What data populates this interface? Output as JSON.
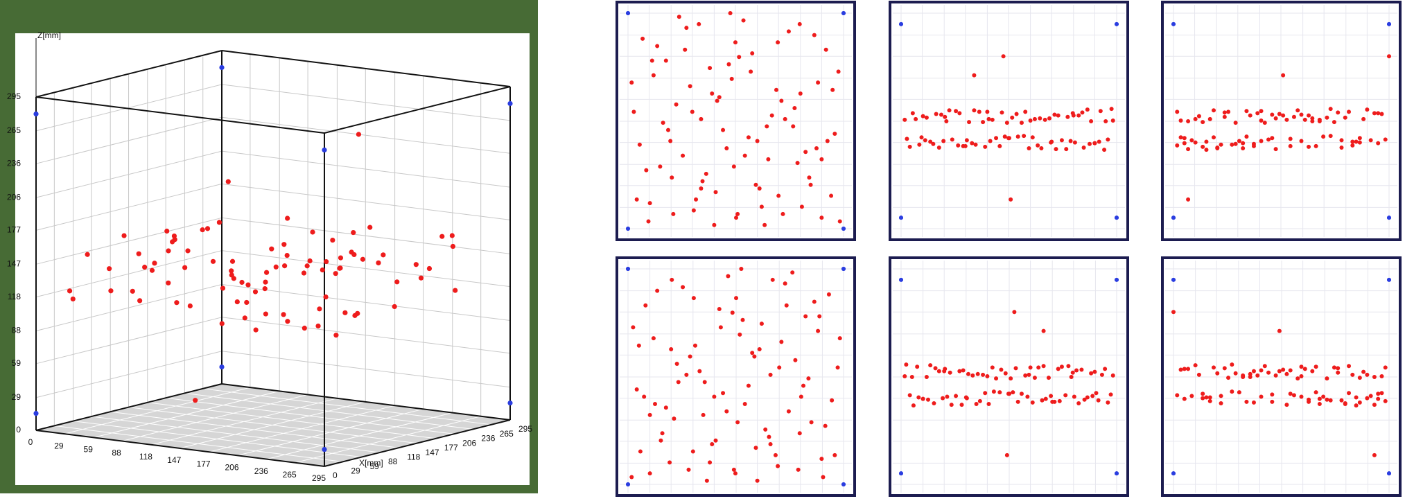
{
  "chart_data": {
    "type": "scatter",
    "z_label": "Z[mm]",
    "y_label": "X[mm]",
    "xlim": [
      0,
      295
    ],
    "ylim": [
      0,
      295
    ],
    "zlim": [
      0,
      295
    ],
    "xticks": [
      0,
      29,
      59,
      88,
      118,
      147,
      177,
      206,
      236,
      265,
      295
    ],
    "yticks": [
      0,
      29,
      59,
      88,
      118,
      147,
      177,
      206,
      236,
      265,
      295
    ],
    "zticks": [
      0,
      29,
      59,
      88,
      118,
      147,
      177,
      206,
      236,
      265,
      295
    ],
    "grid": true,
    "series": [
      {
        "color": "#ee1c1c",
        "x": [
          12,
          35,
          58,
          80,
          102,
          125,
          148,
          170,
          192,
          215,
          238,
          260,
          283,
          20,
          44,
          66,
          90,
          112,
          135,
          158,
          180,
          203,
          226,
          248,
          271,
          290,
          8,
          30,
          52,
          75,
          97,
          120,
          142,
          165,
          187,
          210,
          232,
          255,
          278,
          16,
          40,
          62,
          85,
          107,
          130,
          152,
          175,
          197,
          220,
          243,
          265,
          288,
          25,
          48,
          70,
          93,
          115,
          138,
          160,
          183,
          205,
          228,
          250,
          273,
          5,
          28,
          55,
          78,
          100,
          122,
          145,
          168,
          190,
          212,
          235,
          258,
          280,
          33,
          60,
          88,
          118,
          147,
          177,
          206,
          236,
          265,
          140,
          150,
          100
        ],
        "y": [
          40,
          210,
          120,
          275,
          65,
          180,
          15,
          240,
          95,
          150,
          30,
          200,
          130,
          260,
          85,
          170,
          25,
          220,
          110,
          285,
          55,
          190,
          140,
          70,
          245,
          10,
          160,
          35,
          230,
          100,
          280,
          50,
          205,
          125,
          5,
          175,
          90,
          265,
          45,
          115,
          250,
          20,
          195,
          75,
          135,
          235,
          60,
          155,
          270,
          105,
          15,
          215,
          80,
          145,
          290,
          40,
          185,
          225,
          100,
          30,
          255,
          165,
          60,
          120,
          200,
          10,
          135,
          245,
          55,
          175,
          85,
          215,
          140,
          20,
          280,
          110,
          190,
          230,
          70,
          160,
          5,
          255,
          120,
          45,
          185,
          95,
          295,
          20,
          150
        ],
        "z": [
          112,
          152,
          120,
          158,
          115,
          149,
          124,
          160,
          110,
          155,
          118,
          147,
          122,
          150,
          116,
          162,
          121,
          146,
          113,
          157,
          125,
          151,
          109,
          159,
          119,
          148,
          123,
          154,
          111,
          161,
          117,
          150,
          126,
          145,
          114,
          156,
          120,
          163,
          108,
          158,
          119,
          147,
          113,
          160,
          124,
          152,
          110,
          149,
          121,
          155,
          117,
          164,
          115,
          157,
          122,
          146,
          112,
          159,
          126,
          150,
          118,
          153,
          111,
          161,
          149,
          125,
          156,
          114,
          162,
          120,
          145,
          127,
          151,
          109,
          158,
          116,
          147,
          121,
          153,
          113,
          160,
          124,
          148,
          119,
          155,
          117,
          236,
          40,
          210
        ]
      },
      {
        "color": "#2a3de0",
        "x": [
          0,
          295,
          0,
          295,
          0,
          295,
          0,
          295
        ],
        "y": [
          0,
          0,
          295,
          295,
          0,
          0,
          295,
          295
        ],
        "z": [
          15,
          15,
          15,
          15,
          280,
          280,
          280,
          280
        ]
      }
    ],
    "projections": [
      {
        "h": "x",
        "v": "y",
        "flip_h": false
      },
      {
        "h": "x",
        "v": "z",
        "flip_h": false
      },
      {
        "h": "y",
        "v": "z",
        "flip_h": false
      },
      {
        "h": "x",
        "v": "y",
        "flip_h": true
      },
      {
        "h": "x",
        "v": "z",
        "flip_h": true
      },
      {
        "h": "y",
        "v": "z",
        "flip_h": true
      }
    ]
  }
}
